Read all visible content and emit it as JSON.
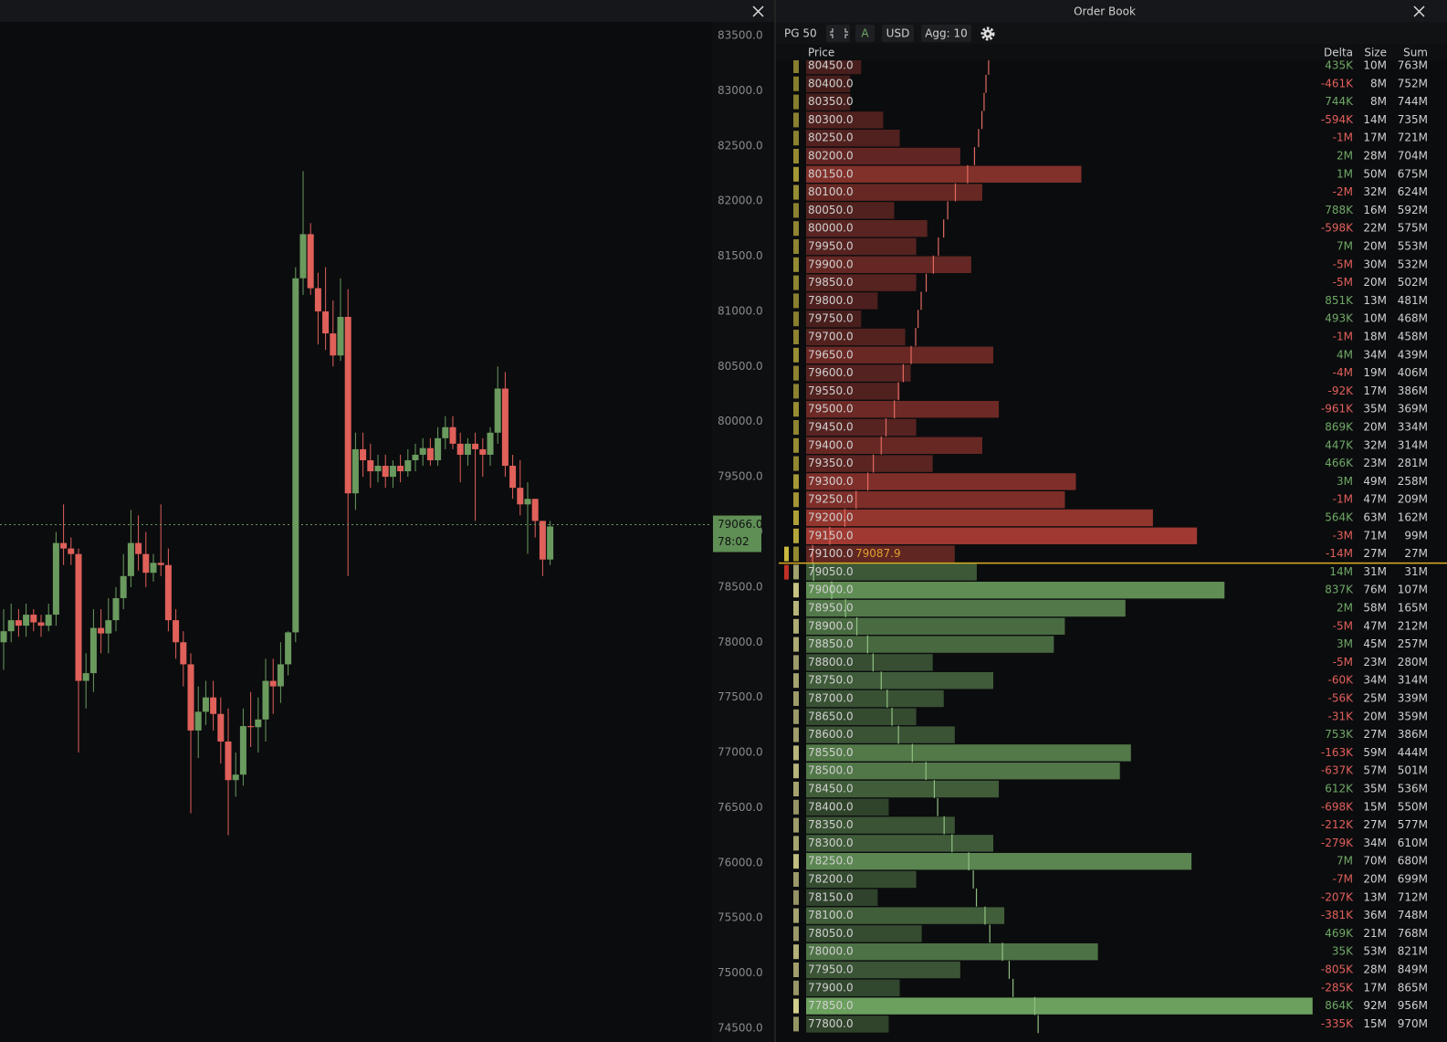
{
  "window": {
    "order_book_title": "Order Book"
  },
  "chart": {
    "price_axis": [
      {
        "value": 83500,
        "label": "83500.0"
      },
      {
        "value": 83000,
        "label": "83000.0"
      },
      {
        "value": 82500,
        "label": "82500.0"
      },
      {
        "value": 82000,
        "label": "82000.0"
      },
      {
        "value": 81500,
        "label": "81500.0"
      },
      {
        "value": 81000,
        "label": "81000.0"
      },
      {
        "value": 80500,
        "label": "80500.0"
      },
      {
        "value": 80000,
        "label": "80000.0"
      },
      {
        "value": 79500,
        "label": "79500.0"
      },
      {
        "value": 79000,
        "label": "79000.0"
      },
      {
        "value": 78500,
        "label": "78500.0"
      },
      {
        "value": 78000,
        "label": "78000.0"
      },
      {
        "value": 77500,
        "label": "77500.0"
      },
      {
        "value": 77000,
        "label": "77000.0"
      },
      {
        "value": 76500,
        "label": "76500.0"
      },
      {
        "value": 76000,
        "label": "76000.0"
      },
      {
        "value": 75500,
        "label": "75500.0"
      },
      {
        "value": 75000,
        "label": "75000.0"
      },
      {
        "value": 74500,
        "label": "74500.0"
      }
    ],
    "current_price": {
      "value": 79066,
      "label": "79066.0"
    },
    "countdown": "78:02",
    "candles": [
      [
        78000,
        78300,
        77750,
        78100
      ],
      [
        78100,
        78350,
        78000,
        78200
      ],
      [
        78200,
        78300,
        78050,
        78150
      ],
      [
        78150,
        78350,
        78050,
        78250
      ],
      [
        78250,
        78300,
        78100,
        78180
      ],
      [
        78180,
        78250,
        78050,
        78150
      ],
      [
        78150,
        78350,
        78100,
        78250
      ],
      [
        78250,
        79000,
        78150,
        78900
      ],
      [
        78900,
        79250,
        78700,
        78850
      ],
      [
        78850,
        78950,
        78700,
        78800
      ],
      [
        78800,
        78850,
        77000,
        77650
      ],
      [
        77650,
        77900,
        77400,
        77720
      ],
      [
        77720,
        78300,
        77550,
        78130
      ],
      [
        78130,
        78300,
        77900,
        78080
      ],
      [
        78080,
        78400,
        77900,
        78200
      ],
      [
        78200,
        78500,
        78100,
        78400
      ],
      [
        78400,
        78800,
        78300,
        78600
      ],
      [
        78600,
        79200,
        78500,
        78900
      ],
      [
        78900,
        79150,
        78650,
        78800
      ],
      [
        78800,
        79000,
        78500,
        78630
      ],
      [
        78630,
        78800,
        78550,
        78720
      ],
      [
        78720,
        79250,
        78600,
        78700
      ],
      [
        78700,
        78850,
        78100,
        78200
      ],
      [
        78200,
        78300,
        77850,
        78000
      ],
      [
        78000,
        78100,
        77600,
        77800
      ],
      [
        77800,
        77900,
        76450,
        77200
      ],
      [
        77200,
        77600,
        76950,
        77370
      ],
      [
        77370,
        77650,
        77250,
        77500
      ],
      [
        77500,
        77650,
        77200,
        77350
      ],
      [
        77350,
        77500,
        76900,
        77100
      ],
      [
        77100,
        77400,
        76250,
        76750
      ],
      [
        76750,
        77000,
        76600,
        76800
      ],
      [
        76800,
        77400,
        76700,
        77240
      ],
      [
        77240,
        77550,
        77050,
        77230
      ],
      [
        77230,
        77500,
        77000,
        77300
      ],
      [
        77300,
        77850,
        77100,
        77650
      ],
      [
        77650,
        77850,
        77350,
        77600
      ],
      [
        77600,
        78000,
        77450,
        77800
      ],
      [
        77800,
        78100,
        77700,
        78090
      ],
      [
        78090,
        81400,
        78000,
        81300
      ],
      [
        81300,
        82270,
        81150,
        81700
      ],
      [
        81700,
        81800,
        81150,
        81210
      ],
      [
        81210,
        81350,
        80700,
        81000
      ],
      [
        81000,
        81400,
        80650,
        80800
      ],
      [
        80800,
        81100,
        80500,
        80600
      ],
      [
        80600,
        81300,
        80550,
        80950
      ],
      [
        80950,
        81200,
        78600,
        79350
      ],
      [
        79350,
        79900,
        79200,
        79750
      ],
      [
        79750,
        79900,
        79500,
        79650
      ],
      [
        79650,
        79800,
        79400,
        79550
      ],
      [
        79550,
        79700,
        79450,
        79600
      ],
      [
        79600,
        79700,
        79400,
        79500
      ],
      [
        79500,
        79650,
        79400,
        79600
      ],
      [
        79600,
        79700,
        79450,
        79550
      ],
      [
        79550,
        79750,
        79500,
        79650
      ],
      [
        79650,
        79800,
        79550,
        79700
      ],
      [
        79700,
        79850,
        79600,
        79760
      ],
      [
        79760,
        79850,
        79600,
        79650
      ],
      [
        79650,
        79950,
        79600,
        79850
      ],
      [
        79850,
        80050,
        79750,
        79950
      ],
      [
        79950,
        80050,
        79750,
        79800
      ],
      [
        79800,
        79900,
        79450,
        79700
      ],
      [
        79700,
        79850,
        79600,
        79800
      ],
      [
        79800,
        79900,
        79100,
        79750
      ],
      [
        79750,
        79850,
        79500,
        79700
      ],
      [
        79700,
        79950,
        79600,
        79900
      ],
      [
        79900,
        80500,
        79800,
        80300
      ],
      [
        80300,
        80450,
        79500,
        79600
      ],
      [
        79600,
        79700,
        79300,
        79400
      ],
      [
        79400,
        79650,
        79150,
        79250
      ],
      [
        79250,
        79450,
        78800,
        79300
      ],
      [
        79300,
        79300,
        78950,
        79100
      ],
      [
        79100,
        79100,
        78600,
        78750
      ],
      [
        78750,
        79100,
        78700,
        79050
      ]
    ]
  },
  "toolbar": {
    "page": "PG 50",
    "mode": "A",
    "currency": "USD",
    "agg": "Agg: 10"
  },
  "columns": {
    "price": "Price",
    "delta": "Delta",
    "size": "Size",
    "sum": "Sum"
  },
  "mark_price": "79087.9",
  "asks": [
    {
      "price": "80450.0",
      "delta": "435K",
      "size": 10,
      "size_label": "10M",
      "sum": 763,
      "sum_label": "763M"
    },
    {
      "price": "80400.0",
      "delta": "-461K",
      "size": 8,
      "size_label": "8M",
      "sum": 752,
      "sum_label": "752M"
    },
    {
      "price": "80350.0",
      "delta": "744K",
      "size": 8,
      "size_label": "8M",
      "sum": 744,
      "sum_label": "744M"
    },
    {
      "price": "80300.0",
      "delta": "-594K",
      "size": 14,
      "size_label": "14M",
      "sum": 735,
      "sum_label": "735M"
    },
    {
      "price": "80250.0",
      "delta": "-1M",
      "size": 17,
      "size_label": "17M",
      "sum": 721,
      "sum_label": "721M"
    },
    {
      "price": "80200.0",
      "delta": "2M",
      "size": 28,
      "size_label": "28M",
      "sum": 704,
      "sum_label": "704M"
    },
    {
      "price": "80150.0",
      "delta": "1M",
      "size": 50,
      "size_label": "50M",
      "sum": 675,
      "sum_label": "675M"
    },
    {
      "price": "80100.0",
      "delta": "-2M",
      "size": 32,
      "size_label": "32M",
      "sum": 624,
      "sum_label": "624M"
    },
    {
      "price": "80050.0",
      "delta": "788K",
      "size": 16,
      "size_label": "16M",
      "sum": 592,
      "sum_label": "592M"
    },
    {
      "price": "80000.0",
      "delta": "-598K",
      "size": 22,
      "size_label": "22M",
      "sum": 575,
      "sum_label": "575M"
    },
    {
      "price": "79950.0",
      "delta": "7M",
      "size": 20,
      "size_label": "20M",
      "sum": 553,
      "sum_label": "553M"
    },
    {
      "price": "79900.0",
      "delta": "-5M",
      "size": 30,
      "size_label": "30M",
      "sum": 532,
      "sum_label": "532M"
    },
    {
      "price": "79850.0",
      "delta": "-5M",
      "size": 20,
      "size_label": "20M",
      "sum": 502,
      "sum_label": "502M"
    },
    {
      "price": "79800.0",
      "delta": "851K",
      "size": 13,
      "size_label": "13M",
      "sum": 481,
      "sum_label": "481M"
    },
    {
      "price": "79750.0",
      "delta": "493K",
      "size": 10,
      "size_label": "10M",
      "sum": 468,
      "sum_label": "468M"
    },
    {
      "price": "79700.0",
      "delta": "-1M",
      "size": 18,
      "size_label": "18M",
      "sum": 458,
      "sum_label": "458M"
    },
    {
      "price": "79650.0",
      "delta": "4M",
      "size": 34,
      "size_label": "34M",
      "sum": 439,
      "sum_label": "439M"
    },
    {
      "price": "79600.0",
      "delta": "-4M",
      "size": 19,
      "size_label": "19M",
      "sum": 406,
      "sum_label": "406M"
    },
    {
      "price": "79550.0",
      "delta": "-92K",
      "size": 17,
      "size_label": "17M",
      "sum": 386,
      "sum_label": "386M"
    },
    {
      "price": "79500.0",
      "delta": "-961K",
      "size": 35,
      "size_label": "35M",
      "sum": 369,
      "sum_label": "369M"
    },
    {
      "price": "79450.0",
      "delta": "869K",
      "size": 20,
      "size_label": "20M",
      "sum": 334,
      "sum_label": "334M"
    },
    {
      "price": "79400.0",
      "delta": "447K",
      "size": 32,
      "size_label": "32M",
      "sum": 314,
      "sum_label": "314M"
    },
    {
      "price": "79350.0",
      "delta": "466K",
      "size": 23,
      "size_label": "23M",
      "sum": 281,
      "sum_label": "281M"
    },
    {
      "price": "79300.0",
      "delta": "3M",
      "size": 49,
      "size_label": "49M",
      "sum": 258,
      "sum_label": "258M"
    },
    {
      "price": "79250.0",
      "delta": "-1M",
      "size": 47,
      "size_label": "47M",
      "sum": 209,
      "sum_label": "209M"
    },
    {
      "price": "79200.0",
      "delta": "564K",
      "size": 63,
      "size_label": "63M",
      "sum": 162,
      "sum_label": "162M"
    },
    {
      "price": "79150.0",
      "delta": "-3M",
      "size": 71,
      "size_label": "71M",
      "sum": 99,
      "sum_label": "99M"
    },
    {
      "price": "79100.0",
      "delta": "-14M",
      "size": 27,
      "size_label": "27M",
      "sum": 27,
      "sum_label": "27M"
    }
  ],
  "bids": [
    {
      "price": "79050.0",
      "delta": "14M",
      "size": 31,
      "size_label": "31M",
      "sum": 31,
      "sum_label": "31M"
    },
    {
      "price": "79000.0",
      "delta": "837K",
      "size": 76,
      "size_label": "76M",
      "sum": 107,
      "sum_label": "107M"
    },
    {
      "price": "78950.0",
      "delta": "2M",
      "size": 58,
      "size_label": "58M",
      "sum": 165,
      "sum_label": "165M"
    },
    {
      "price": "78900.0",
      "delta": "-5M",
      "size": 47,
      "size_label": "47M",
      "sum": 212,
      "sum_label": "212M"
    },
    {
      "price": "78850.0",
      "delta": "3M",
      "size": 45,
      "size_label": "45M",
      "sum": 257,
      "sum_label": "257M"
    },
    {
      "price": "78800.0",
      "delta": "-5M",
      "size": 23,
      "size_label": "23M",
      "sum": 280,
      "sum_label": "280M"
    },
    {
      "price": "78750.0",
      "delta": "-60K",
      "size": 34,
      "size_label": "34M",
      "sum": 314,
      "sum_label": "314M"
    },
    {
      "price": "78700.0",
      "delta": "-56K",
      "size": 25,
      "size_label": "25M",
      "sum": 339,
      "sum_label": "339M"
    },
    {
      "price": "78650.0",
      "delta": "-31K",
      "size": 20,
      "size_label": "20M",
      "sum": 359,
      "sum_label": "359M"
    },
    {
      "price": "78600.0",
      "delta": "753K",
      "size": 27,
      "size_label": "27M",
      "sum": 386,
      "sum_label": "386M"
    },
    {
      "price": "78550.0",
      "delta": "-163K",
      "size": 59,
      "size_label": "59M",
      "sum": 444,
      "sum_label": "444M"
    },
    {
      "price": "78500.0",
      "delta": "-637K",
      "size": 57,
      "size_label": "57M",
      "sum": 501,
      "sum_label": "501M"
    },
    {
      "price": "78450.0",
      "delta": "612K",
      "size": 35,
      "size_label": "35M",
      "sum": 536,
      "sum_label": "536M"
    },
    {
      "price": "78400.0",
      "delta": "-698K",
      "size": 15,
      "size_label": "15M",
      "sum": 550,
      "sum_label": "550M"
    },
    {
      "price": "78350.0",
      "delta": "-212K",
      "size": 27,
      "size_label": "27M",
      "sum": 577,
      "sum_label": "577M"
    },
    {
      "price": "78300.0",
      "delta": "-279K",
      "size": 34,
      "size_label": "34M",
      "sum": 610,
      "sum_label": "610M"
    },
    {
      "price": "78250.0",
      "delta": "7M",
      "size": 70,
      "size_label": "70M",
      "sum": 680,
      "sum_label": "680M"
    },
    {
      "price": "78200.0",
      "delta": "-7M",
      "size": 20,
      "size_label": "20M",
      "sum": 699,
      "sum_label": "699M"
    },
    {
      "price": "78150.0",
      "delta": "-207K",
      "size": 13,
      "size_label": "13M",
      "sum": 712,
      "sum_label": "712M"
    },
    {
      "price": "78100.0",
      "delta": "-381K",
      "size": 36,
      "size_label": "36M",
      "sum": 748,
      "sum_label": "748M"
    },
    {
      "price": "78050.0",
      "delta": "469K",
      "size": 21,
      "size_label": "21M",
      "sum": 768,
      "sum_label": "768M"
    },
    {
      "price": "78000.0",
      "delta": "35K",
      "size": 53,
      "size_label": "53M",
      "sum": 821,
      "sum_label": "821M"
    },
    {
      "price": "77950.0",
      "delta": "-805K",
      "size": 28,
      "size_label": "28M",
      "sum": 849,
      "sum_label": "849M"
    },
    {
      "price": "77900.0",
      "delta": "-285K",
      "size": 17,
      "size_label": "17M",
      "sum": 865,
      "sum_label": "865M"
    },
    {
      "price": "77850.0",
      "delta": "864K",
      "size": 92,
      "size_label": "92M",
      "sum": 956,
      "sum_label": "956M"
    },
    {
      "price": "77800.0",
      "delta": "-335K",
      "size": 15,
      "size_label": "15M",
      "sum": 970,
      "sum_label": "970M"
    }
  ]
}
